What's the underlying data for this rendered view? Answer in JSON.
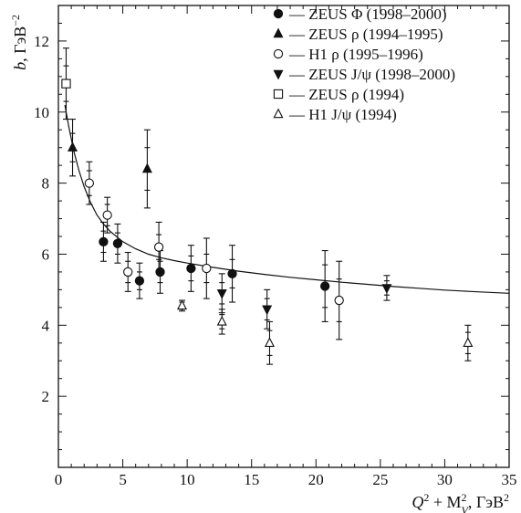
{
  "chart_data": {
    "type": "scatter",
    "xlabel_base": "Q",
    "xlabel_mid": " + M",
    "xlabel_sub": "V",
    "xlabel_unit": ", ГэВ",
    "xlabel_exp_a": "2",
    "xlabel_exp_b": "2",
    "xlabel_exp_c": "2",
    "ylabel_base": "b",
    "ylabel_unit": ", ГэВ",
    "ylabel_exp": "−2",
    "xlim": [
      0,
      35
    ],
    "ylim": [
      0,
      13
    ],
    "x_ticks": [
      0,
      5,
      10,
      15,
      20,
      25,
      30,
      35
    ],
    "y_ticks": [
      2,
      4,
      6,
      8,
      10,
      12
    ],
    "grid": false,
    "legend_position": "top-right",
    "series": [
      {
        "name": "— ZEUS Φ (1998–2000)",
        "marker": "filled-circle",
        "points": [
          {
            "x": 3.5,
            "y": 6.35,
            "err_inner": 0.3,
            "err_outer": 0.55
          },
          {
            "x": 4.6,
            "y": 6.3,
            "err_inner": 0.3,
            "err_outer": 0.55
          },
          {
            "x": 6.3,
            "y": 5.25,
            "err_inner": 0.25,
            "err_outer": 0.5
          },
          {
            "x": 7.9,
            "y": 5.5,
            "err_inner": 0.3,
            "err_outer": 0.6
          },
          {
            "x": 10.3,
            "y": 5.6,
            "err_inner": 0.35,
            "err_outer": 0.65
          },
          {
            "x": 13.5,
            "y": 5.45,
            "err_inner": 0.4,
            "err_outer": 0.8
          },
          {
            "x": 20.7,
            "y": 5.1,
            "err_inner": 0.6,
            "err_outer": 1.0
          }
        ]
      },
      {
        "name": "— ZEUS ρ (1994–1995)",
        "marker": "filled-triangle-up",
        "points": [
          {
            "x": 1.1,
            "y": 9.0,
            "err_inner": 0.4,
            "err_outer": 0.8
          },
          {
            "x": 6.9,
            "y": 8.4,
            "err_inner": 0.6,
            "err_outer": 1.1
          }
        ]
      },
      {
        "name": "— H1 ρ (1995–1996)",
        "marker": "open-circle",
        "points": [
          {
            "x": 2.4,
            "y": 8.0,
            "err_inner": 0.35,
            "err_outer": 0.6
          },
          {
            "x": 3.8,
            "y": 7.1,
            "err_inner": 0.3,
            "err_outer": 0.5
          },
          {
            "x": 5.4,
            "y": 5.5,
            "err_inner": 0.3,
            "err_outer": 0.55
          },
          {
            "x": 7.8,
            "y": 6.2,
            "err_inner": 0.35,
            "err_outer": 0.7
          },
          {
            "x": 11.5,
            "y": 5.6,
            "err_inner": 0.4,
            "err_outer": 0.85
          },
          {
            "x": 21.8,
            "y": 4.7,
            "err_inner": 0.6,
            "err_outer": 1.1
          }
        ]
      },
      {
        "name": "— ZEUS J/ψ  (1998–2000)",
        "marker": "filled-triangle-down",
        "points": [
          {
            "x": 12.7,
            "y": 4.9,
            "err_inner": 0.3,
            "err_outer": 0.55
          },
          {
            "x": 16.2,
            "y": 4.45,
            "err_inner": 0.3,
            "err_outer": 0.55
          },
          {
            "x": 25.5,
            "y": 5.05,
            "err_inner": 0.2,
            "err_outer": 0.35
          }
        ]
      },
      {
        "name": "— ZEUS ρ (1994)",
        "marker": "open-square",
        "points": [
          {
            "x": 0.6,
            "y": 10.8,
            "err_inner": 0.5,
            "err_outer": 1.0
          }
        ]
      },
      {
        "name": "— H1 J/ψ (1994)",
        "marker": "open-triangle-up",
        "points": [
          {
            "x": 9.6,
            "y": 4.55,
            "err_inner": 0.1,
            "err_outer": 0.15
          },
          {
            "x": 12.7,
            "y": 4.1,
            "err_inner": 0.2,
            "err_outer": 0.35
          },
          {
            "x": 16.4,
            "y": 3.5,
            "err_inner": 0.35,
            "err_outer": 0.6
          },
          {
            "x": 31.8,
            "y": 3.5,
            "err_inner": 0.3,
            "err_outer": 0.5
          }
        ]
      }
    ],
    "fit_curve": {
      "type": "line",
      "points": [
        [
          0.5,
          10.2
        ],
        [
          0.8,
          9.6
        ],
        [
          1.2,
          8.9
        ],
        [
          1.6,
          8.35
        ],
        [
          2.0,
          7.9
        ],
        [
          2.5,
          7.45
        ],
        [
          3.0,
          7.1
        ],
        [
          3.5,
          6.85
        ],
        [
          4.0,
          6.65
        ],
        [
          5.0,
          6.35
        ],
        [
          6.0,
          6.15
        ],
        [
          7.0,
          6.0
        ],
        [
          8.0,
          5.9
        ],
        [
          9.0,
          5.82
        ],
        [
          10.0,
          5.75
        ],
        [
          12.0,
          5.63
        ],
        [
          14.0,
          5.52
        ],
        [
          16.0,
          5.43
        ],
        [
          18.0,
          5.35
        ],
        [
          20.0,
          5.28
        ],
        [
          22.0,
          5.21
        ],
        [
          24.0,
          5.15
        ],
        [
          26.0,
          5.09
        ],
        [
          28.0,
          5.04
        ],
        [
          30.0,
          4.99
        ],
        [
          32.0,
          4.95
        ],
        [
          35.0,
          4.9
        ]
      ]
    }
  }
}
